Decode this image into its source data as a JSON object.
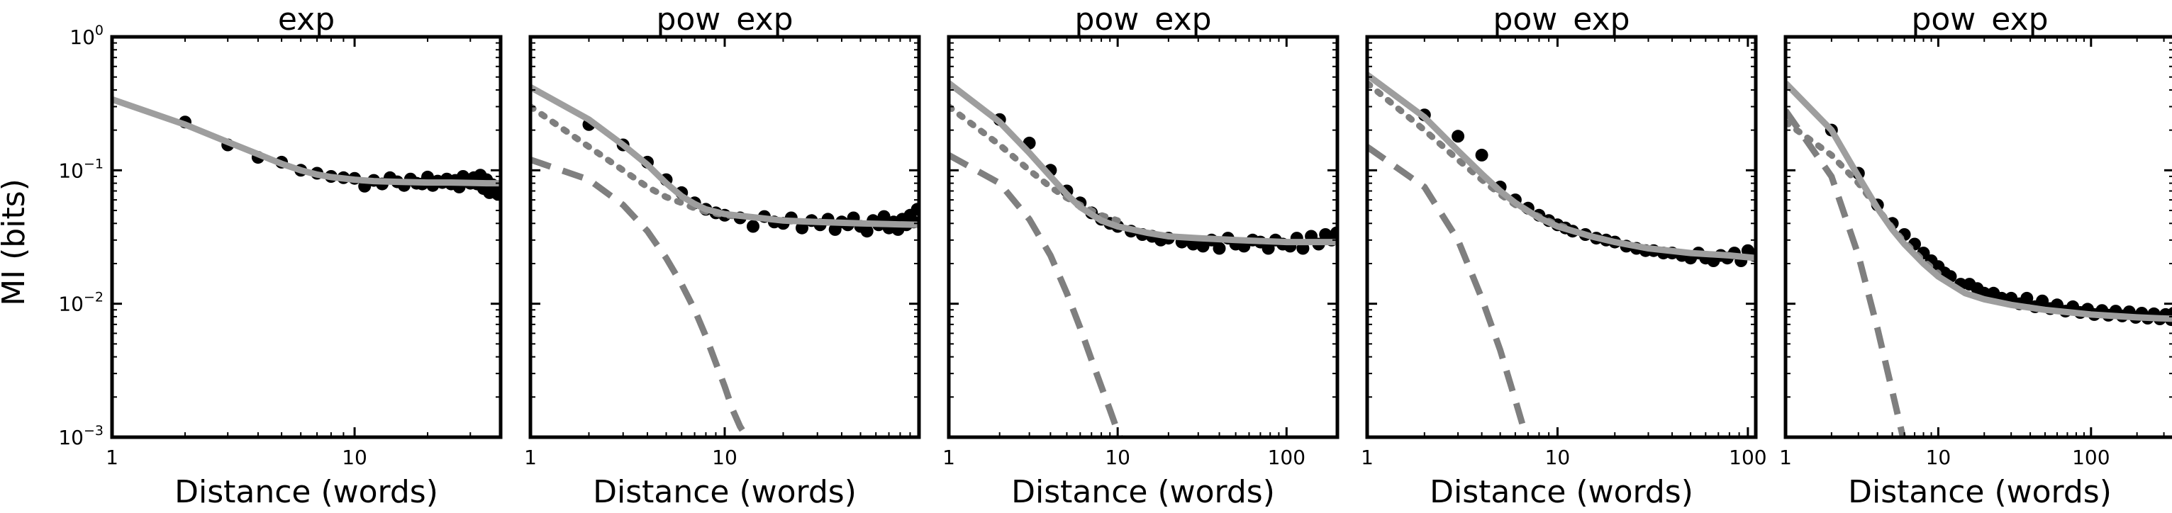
{
  "figure": {
    "ylabel": "MI (bits)",
    "xlabel": "Distance (words)"
  },
  "y_ticks": [
    {
      "value": 1,
      "base": "10",
      "exp": "0"
    },
    {
      "value": 0.1,
      "base": "10",
      "exp": "−1"
    },
    {
      "value": 0.01,
      "base": "10",
      "exp": "−2"
    },
    {
      "value": 0.001,
      "base": "10",
      "exp": "−3"
    }
  ],
  "chart_data": [
    {
      "type": "scatter",
      "title": "exp",
      "xlabel": "Distance (words)",
      "ylabel": "MI (bits)",
      "x_scale": "log",
      "y_scale": "log",
      "xlim": [
        1,
        40
      ],
      "ylim": [
        0.001,
        1
      ],
      "x_tick_labels": [
        "1",
        "10"
      ],
      "grid": false,
      "points": [
        [
          2,
          0.23
        ],
        [
          3,
          0.155
        ],
        [
          4,
          0.125
        ],
        [
          5,
          0.115
        ],
        [
          6,
          0.1
        ],
        [
          7,
          0.095
        ],
        [
          8,
          0.09
        ],
        [
          9,
          0.088
        ],
        [
          10,
          0.087
        ],
        [
          11,
          0.076
        ],
        [
          12,
          0.084
        ],
        [
          13,
          0.079
        ],
        [
          14,
          0.088
        ],
        [
          15,
          0.082
        ],
        [
          16,
          0.077
        ],
        [
          17,
          0.086
        ],
        [
          18,
          0.08
        ],
        [
          19,
          0.079
        ],
        [
          20,
          0.089
        ],
        [
          21,
          0.077
        ],
        [
          22,
          0.083
        ],
        [
          23,
          0.081
        ],
        [
          24,
          0.086
        ],
        [
          25,
          0.079
        ],
        [
          26,
          0.084
        ],
        [
          27,
          0.075
        ],
        [
          28,
          0.09
        ],
        [
          29,
          0.083
        ],
        [
          30,
          0.08
        ],
        [
          31,
          0.088
        ],
        [
          32,
          0.079
        ],
        [
          33,
          0.092
        ],
        [
          34,
          0.073
        ],
        [
          35,
          0.085
        ],
        [
          36,
          0.068
        ],
        [
          37,
          0.078
        ],
        [
          38,
          0.072
        ],
        [
          39,
          0.066
        ]
      ],
      "fit": {
        "solid": {
          "x": [
            1,
            2,
            3,
            4,
            5,
            6,
            7,
            8,
            10,
            12,
            15,
            20,
            25,
            30,
            35,
            40
          ],
          "y": [
            0.34,
            0.22,
            0.163,
            0.132,
            0.112,
            0.1,
            0.093,
            0.089,
            0.085,
            0.083,
            0.082,
            0.081,
            0.081,
            0.0805,
            0.08,
            0.08
          ]
        },
        "dotted": null,
        "dashed": null
      }
    },
    {
      "type": "scatter",
      "title": "pow_exp",
      "xlabel": "Distance (words)",
      "ylabel": "",
      "x_scale": "log",
      "y_scale": "log",
      "xlim": [
        1,
        100
      ],
      "ylim": [
        0.001,
        1
      ],
      "x_tick_labels": [
        "1",
        "10"
      ],
      "grid": false,
      "points": [
        [
          2,
          0.22
        ],
        [
          3,
          0.155
        ],
        [
          4,
          0.115
        ],
        [
          5,
          0.085
        ],
        [
          6,
          0.068
        ],
        [
          7,
          0.057
        ],
        [
          8,
          0.051
        ],
        [
          9,
          0.048
        ],
        [
          10,
          0.046
        ],
        [
          12,
          0.044
        ],
        [
          14,
          0.038
        ],
        [
          16,
          0.045
        ],
        [
          18,
          0.041
        ],
        [
          20,
          0.04
        ],
        [
          22,
          0.044
        ],
        [
          25,
          0.037
        ],
        [
          28,
          0.042
        ],
        [
          31,
          0.039
        ],
        [
          34,
          0.043
        ],
        [
          37,
          0.036
        ],
        [
          40,
          0.041
        ],
        [
          43,
          0.039
        ],
        [
          46,
          0.044
        ],
        [
          50,
          0.038
        ],
        [
          54,
          0.035
        ],
        [
          58,
          0.042
        ],
        [
          62,
          0.039
        ],
        [
          66,
          0.045
        ],
        [
          70,
          0.037
        ],
        [
          74,
          0.041
        ],
        [
          78,
          0.036
        ],
        [
          82,
          0.043
        ],
        [
          86,
          0.039
        ],
        [
          90,
          0.046
        ],
        [
          94,
          0.041
        ],
        [
          98,
          0.051
        ]
      ],
      "fit": {
        "solid": {
          "x": [
            1,
            2,
            3,
            4,
            5,
            6,
            7,
            8,
            10,
            15,
            20,
            30,
            50,
            70,
            100
          ],
          "y": [
            0.42,
            0.24,
            0.155,
            0.11,
            0.08,
            0.064,
            0.056,
            0.051,
            0.047,
            0.044,
            0.042,
            0.041,
            0.04,
            0.0395,
            0.039
          ]
        },
        "dotted": {
          "x": [
            1,
            2,
            3,
            4,
            5,
            6,
            7,
            8,
            10,
            12
          ],
          "y": [
            0.3,
            0.15,
            0.1,
            0.075,
            0.063,
            0.057,
            0.052,
            0.049,
            0.046,
            0.045
          ]
        },
        "dashed": {
          "x": [
            1,
            2,
            3,
            4,
            5,
            6,
            7,
            8,
            9,
            10,
            11,
            12,
            13
          ],
          "y": [
            0.12,
            0.085,
            0.055,
            0.035,
            0.022,
            0.014,
            0.009,
            0.0057,
            0.0036,
            0.0024,
            0.0016,
            0.0012,
            0.001
          ]
        }
      }
    },
    {
      "type": "scatter",
      "title": "pow_exp",
      "xlabel": "Distance (words)",
      "ylabel": "",
      "x_scale": "log",
      "y_scale": "log",
      "xlim": [
        1,
        200
      ],
      "ylim": [
        0.001,
        1
      ],
      "x_tick_labels": [
        "1",
        "10",
        "100"
      ],
      "grid": false,
      "points": [
        [
          2,
          0.24
        ],
        [
          3,
          0.16
        ],
        [
          4,
          0.1
        ],
        [
          5,
          0.07
        ],
        [
          6,
          0.057
        ],
        [
          7,
          0.048
        ],
        [
          8,
          0.043
        ],
        [
          9,
          0.04
        ],
        [
          10,
          0.038
        ],
        [
          12,
          0.035
        ],
        [
          14,
          0.033
        ],
        [
          16,
          0.032
        ],
        [
          18,
          0.03
        ],
        [
          20,
          0.031
        ],
        [
          24,
          0.029
        ],
        [
          28,
          0.028
        ],
        [
          32,
          0.027
        ],
        [
          36,
          0.03
        ],
        [
          40,
          0.026
        ],
        [
          45,
          0.031
        ],
        [
          50,
          0.028
        ],
        [
          56,
          0.027
        ],
        [
          63,
          0.03
        ],
        [
          70,
          0.029
        ],
        [
          78,
          0.026
        ],
        [
          86,
          0.03
        ],
        [
          95,
          0.028
        ],
        [
          105,
          0.027
        ],
        [
          115,
          0.031
        ],
        [
          125,
          0.026
        ],
        [
          140,
          0.032
        ],
        [
          155,
          0.028
        ],
        [
          170,
          0.033
        ],
        [
          185,
          0.03
        ],
        [
          198,
          0.034
        ]
      ],
      "fit": {
        "solid": {
          "x": [
            1,
            2,
            3,
            4,
            5,
            6,
            8,
            10,
            15,
            20,
            30,
            50,
            100,
            200
          ],
          "y": [
            0.45,
            0.23,
            0.135,
            0.09,
            0.066,
            0.053,
            0.042,
            0.038,
            0.034,
            0.032,
            0.031,
            0.03,
            0.029,
            0.029
          ]
        },
        "dotted": {
          "x": [
            1,
            2,
            3,
            4,
            5,
            6,
            8,
            10
          ],
          "y": [
            0.3,
            0.155,
            0.1,
            0.075,
            0.062,
            0.055,
            0.046,
            0.042
          ]
        },
        "dashed": {
          "x": [
            1,
            2,
            3,
            4,
            5,
            6,
            7,
            8,
            9,
            10,
            11
          ],
          "y": [
            0.13,
            0.08,
            0.043,
            0.023,
            0.012,
            0.0066,
            0.0038,
            0.0024,
            0.0016,
            0.0011,
            0.0008
          ]
        }
      }
    },
    {
      "type": "scatter",
      "title": "pow_exp",
      "xlabel": "Distance (words)",
      "ylabel": "",
      "x_scale": "log",
      "y_scale": "log",
      "xlim": [
        1,
        110
      ],
      "ylim": [
        0.001,
        1
      ],
      "x_tick_labels": [
        "1",
        "10",
        "100"
      ],
      "grid": false,
      "points": [
        [
          2,
          0.26
        ],
        [
          3,
          0.18
        ],
        [
          4,
          0.13
        ],
        [
          5,
          0.075
        ],
        [
          6,
          0.06
        ],
        [
          7,
          0.052
        ],
        [
          8,
          0.046
        ],
        [
          9,
          0.042
        ],
        [
          10,
          0.039
        ],
        [
          11,
          0.037
        ],
        [
          12,
          0.035
        ],
        [
          14,
          0.033
        ],
        [
          16,
          0.031
        ],
        [
          18,
          0.03
        ],
        [
          20,
          0.029
        ],
        [
          23,
          0.027
        ],
        [
          26,
          0.026
        ],
        [
          29,
          0.025
        ],
        [
          32,
          0.025
        ],
        [
          36,
          0.024
        ],
        [
          40,
          0.024
        ],
        [
          45,
          0.023
        ],
        [
          50,
          0.022
        ],
        [
          55,
          0.024
        ],
        [
          60,
          0.022
        ],
        [
          66,
          0.021
        ],
        [
          72,
          0.023
        ],
        [
          78,
          0.022
        ],
        [
          85,
          0.024
        ],
        [
          92,
          0.021
        ],
        [
          100,
          0.025
        ],
        [
          108,
          0.023
        ]
      ],
      "fit": {
        "solid": {
          "x": [
            1,
            2,
            3,
            4,
            5,
            6,
            8,
            10,
            15,
            20,
            30,
            50,
            80,
            110
          ],
          "y": [
            0.52,
            0.25,
            0.14,
            0.094,
            0.07,
            0.057,
            0.044,
            0.038,
            0.032,
            0.029,
            0.026,
            0.024,
            0.023,
            0.022
          ]
        },
        "dotted": {
          "x": [
            1,
            2,
            3,
            4,
            5,
            6,
            8,
            10,
            12
          ],
          "y": [
            0.45,
            0.2,
            0.12,
            0.085,
            0.066,
            0.055,
            0.045,
            0.039,
            0.036
          ]
        },
        "dashed": {
          "x": [
            1,
            2,
            3,
            4,
            5,
            6,
            7
          ],
          "y": [
            0.15,
            0.075,
            0.03,
            0.011,
            0.0045,
            0.0019,
            0.0009
          ]
        }
      }
    },
    {
      "type": "scatter",
      "title": "pow_exp",
      "xlabel": "Distance (words)",
      "ylabel": "",
      "x_scale": "log",
      "y_scale": "log",
      "xlim": [
        1,
        350
      ],
      "ylim": [
        0.001,
        1
      ],
      "x_tick_labels": [
        "1",
        "10",
        "100"
      ],
      "grid": false,
      "points": [
        [
          2,
          0.2
        ],
        [
          3,
          0.095
        ],
        [
          4,
          0.055
        ],
        [
          5,
          0.04
        ],
        [
          6,
          0.033
        ],
        [
          7,
          0.028
        ],
        [
          8,
          0.024
        ],
        [
          9,
          0.021
        ],
        [
          10,
          0.019
        ],
        [
          11,
          0.017
        ],
        [
          12,
          0.016
        ],
        [
          14,
          0.014
        ],
        [
          16,
          0.014
        ],
        [
          18,
          0.013
        ],
        [
          20,
          0.012
        ],
        [
          23,
          0.012
        ],
        [
          26,
          0.011
        ],
        [
          30,
          0.011
        ],
        [
          34,
          0.01
        ],
        [
          38,
          0.011
        ],
        [
          43,
          0.0095
        ],
        [
          48,
          0.0105
        ],
        [
          54,
          0.0092
        ],
        [
          60,
          0.0098
        ],
        [
          68,
          0.0088
        ],
        [
          76,
          0.0095
        ],
        [
          85,
          0.0086
        ],
        [
          95,
          0.0091
        ],
        [
          105,
          0.0083
        ],
        [
          118,
          0.0089
        ],
        [
          130,
          0.0082
        ],
        [
          145,
          0.0088
        ],
        [
          160,
          0.0081
        ],
        [
          178,
          0.0087
        ],
        [
          196,
          0.0079
        ],
        [
          215,
          0.0085
        ],
        [
          235,
          0.0078
        ],
        [
          258,
          0.0084
        ],
        [
          282,
          0.0077
        ],
        [
          308,
          0.0083
        ],
        [
          335,
          0.0076
        ],
        [
          348,
          0.0085
        ]
      ],
      "fit": {
        "solid": {
          "x": [
            1,
            2,
            3,
            4,
            5,
            6,
            8,
            10,
            15,
            20,
            30,
            50,
            100,
            200,
            350
          ],
          "y": [
            0.45,
            0.2,
            0.09,
            0.052,
            0.036,
            0.028,
            0.02,
            0.016,
            0.012,
            0.0108,
            0.0098,
            0.009,
            0.0083,
            0.0079,
            0.0077
          ]
        },
        "dotted": {
          "x": [
            1,
            2,
            3,
            4,
            5,
            6,
            8,
            10
          ],
          "y": [
            0.23,
            0.13,
            0.08,
            0.052,
            0.037,
            0.029,
            0.021,
            0.017
          ]
        },
        "dashed": {
          "x": [
            1,
            2,
            3,
            4,
            5,
            6
          ],
          "y": [
            0.28,
            0.09,
            0.023,
            0.0065,
            0.0022,
            0.0009
          ]
        }
      }
    }
  ]
}
